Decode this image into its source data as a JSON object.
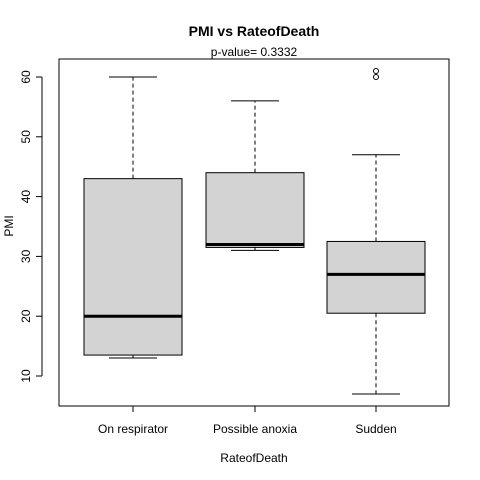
{
  "chart_data": {
    "type": "boxplot",
    "title": "PMI  vs  RateofDeath",
    "subtitle": "p-value= 0.3332",
    "xlabel": "RateofDeath",
    "ylabel": "PMI",
    "ylim": [
      5,
      63
    ],
    "yticks": [
      10,
      20,
      30,
      40,
      50,
      60
    ],
    "categories": [
      "On respirator",
      "Possible anoxia",
      "Sudden"
    ],
    "boxes": [
      {
        "category": "On respirator",
        "whisker_low": 13,
        "q1": 13.5,
        "median": 20,
        "q3": 43,
        "whisker_high": 60,
        "outliers": []
      },
      {
        "category": "Possible anoxia",
        "whisker_low": 31,
        "q1": 31.5,
        "median": 32,
        "q3": 44,
        "whisker_high": 56,
        "outliers": []
      },
      {
        "category": "Sudden",
        "whisker_low": 7,
        "q1": 20.5,
        "median": 27,
        "q3": 32.5,
        "whisker_high": 47,
        "outliers": [
          60,
          61
        ]
      }
    ],
    "colors": {
      "box_fill": "#d3d3d3",
      "stroke": "#000000"
    }
  }
}
